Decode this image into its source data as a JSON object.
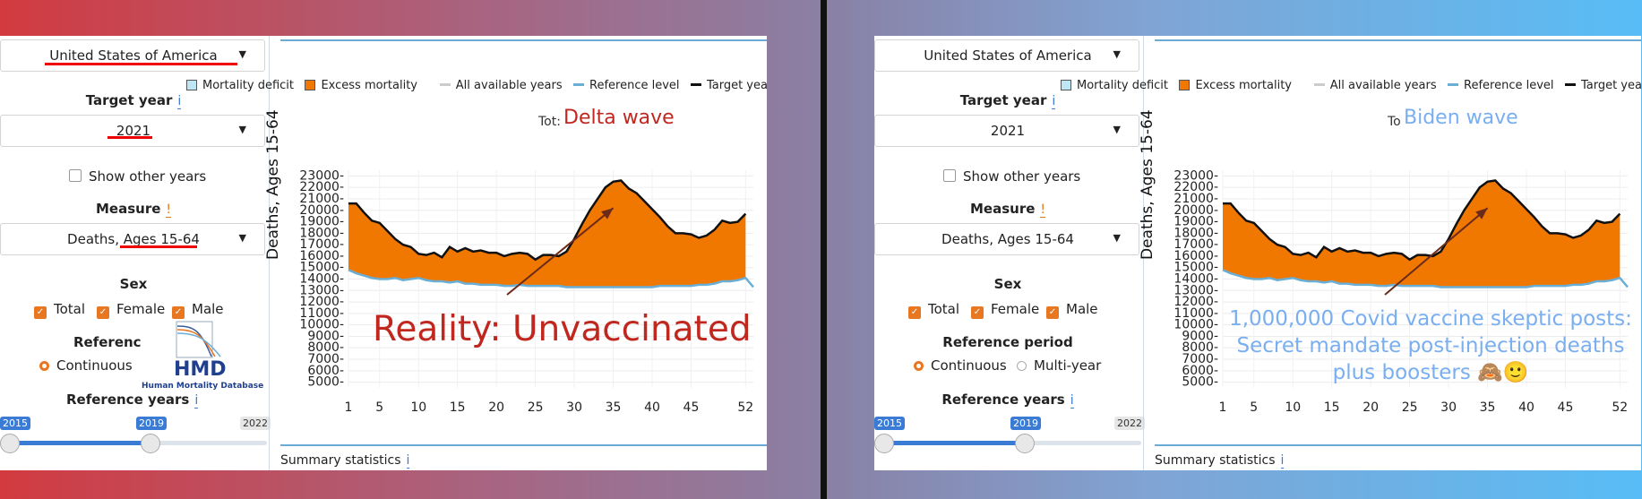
{
  "colors": {
    "excess": "#f07800",
    "deficit": "#bfe6f5",
    "target_line": "#111111",
    "reference_line": "#6aaed6",
    "accent_orange": "#e87722",
    "accent_blue": "#3a7bd5",
    "annotation_left": "#c0271f",
    "annotation_right": "#79aef0"
  },
  "sidebar": {
    "country": "United States of America",
    "target_year_label": "Target year",
    "info_glyph": "i",
    "target_year": "2021",
    "show_other_years": "Show other years",
    "measure_label": "Measure",
    "warn_glyph": "!",
    "measure": "Deaths, Ages 15-64",
    "sex_label": "Sex",
    "sex_options": [
      "Total",
      "Female",
      "Male"
    ],
    "reference_label_left": "Referenc",
    "reference_label_right": "Reference period",
    "reference_options": [
      "Continuous",
      "Multi-year"
    ],
    "reference_years_label": "Reference years",
    "slider_min": "2015",
    "slider_value": "2019",
    "slider_max": "2022",
    "slider_fraction": 0.57,
    "hmd_logo": "HMD",
    "hmd_caption": "Human Mortality Database"
  },
  "legend": {
    "deficit": "Mortality deficit",
    "excess": "Excess mortality",
    "all_years": "All available years",
    "reference": "Reference level",
    "target": "Target year"
  },
  "chart_left": {
    "partial_title": "Tot:",
    "overlay_title": "Delta wave",
    "annotation": "Reality: Unvaccinated"
  },
  "chart_right": {
    "partial_title": "To",
    "overlay_title": "Biden wave",
    "annotation_lines": [
      "1,000,000 Covid vaccine skeptic posts:",
      "Secret mandate post-injection deaths",
      "plus boosters 🙈🙂"
    ]
  },
  "summary": {
    "label": "Summary statistics"
  },
  "chart_data": {
    "type": "area",
    "ylabel": "Deaths, Ages 15-64",
    "ylim": [
      4500,
      23500
    ],
    "yticks": [
      5000,
      6000,
      7000,
      8000,
      9000,
      10000,
      11000,
      12000,
      13000,
      14000,
      15000,
      16000,
      17000,
      18000,
      19000,
      20000,
      21000,
      22000,
      23000
    ],
    "xlim": [
      1,
      53
    ],
    "xticks": [
      "1",
      "5",
      "10",
      "15",
      "20",
      "25",
      "30",
      "35",
      "40",
      "45",
      "52"
    ],
    "series": [
      {
        "name": "Target year",
        "x": [
          1,
          2,
          3,
          4,
          5,
          6,
          7,
          8,
          9,
          10,
          11,
          12,
          13,
          14,
          15,
          16,
          17,
          18,
          19,
          20,
          21,
          22,
          23,
          24,
          25,
          26,
          27,
          28,
          29,
          30,
          31,
          32,
          33,
          34,
          35,
          36,
          37,
          38,
          39,
          40,
          41,
          42,
          43,
          44,
          45,
          46,
          47,
          48,
          49,
          50,
          51,
          52
        ],
        "values": [
          20600,
          20600,
          19800,
          19100,
          18900,
          18200,
          17500,
          17000,
          16800,
          16200,
          16100,
          16300,
          15900,
          16800,
          16400,
          16700,
          16400,
          16500,
          16300,
          16300,
          16000,
          16200,
          16300,
          16200,
          15700,
          16100,
          16100,
          16000,
          16400,
          17500,
          18800,
          20000,
          21000,
          22000,
          22500,
          22600,
          21900,
          21500,
          20800,
          20100,
          19400,
          18600,
          18000,
          18000,
          17900,
          17600,
          17800,
          18300,
          19100,
          18900,
          19000,
          19700
        ]
      },
      {
        "name": "Reference level",
        "x": [
          1,
          2,
          3,
          4,
          5,
          6,
          7,
          8,
          9,
          10,
          11,
          12,
          13,
          14,
          15,
          16,
          17,
          18,
          19,
          20,
          21,
          22,
          23,
          24,
          25,
          26,
          27,
          28,
          29,
          30,
          31,
          32,
          33,
          34,
          35,
          36,
          37,
          38,
          39,
          40,
          41,
          42,
          43,
          44,
          45,
          46,
          47,
          48,
          49,
          50,
          51,
          52,
          53
        ],
        "values": [
          14800,
          14500,
          14300,
          14100,
          14000,
          14000,
          14100,
          13900,
          14000,
          14100,
          13900,
          13800,
          13800,
          13700,
          13800,
          13600,
          13600,
          13500,
          13500,
          13500,
          13400,
          13400,
          13500,
          13400,
          13400,
          13400,
          13400,
          13400,
          13300,
          13300,
          13300,
          13300,
          13300,
          13300,
          13300,
          13300,
          13300,
          13300,
          13300,
          13300,
          13400,
          13400,
          13400,
          13400,
          13400,
          13500,
          13500,
          13600,
          13800,
          13800,
          13900,
          14100,
          13300
        ]
      }
    ]
  }
}
